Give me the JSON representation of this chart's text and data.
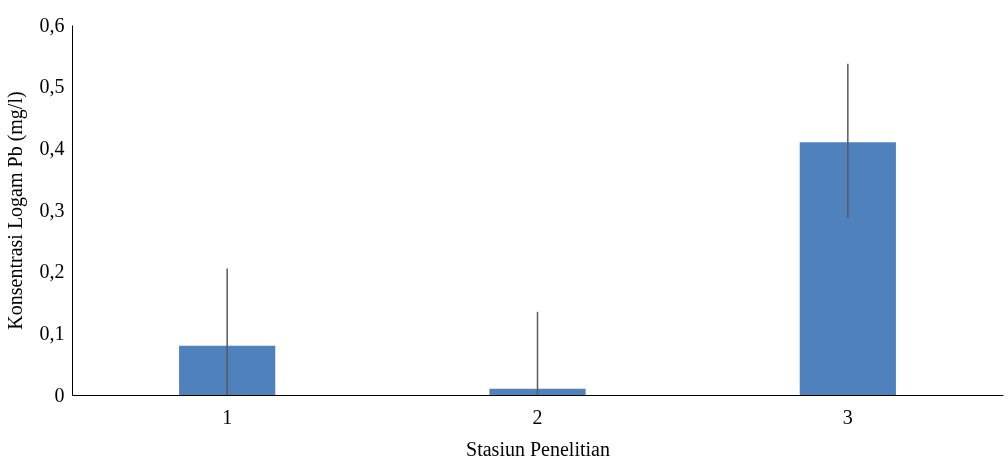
{
  "chart_data": {
    "type": "bar",
    "xlabel": "Stasiun Penelitian",
    "ylabel": "Konsentrasi Logam Pb (mg/l)",
    "categories": [
      "1",
      "2",
      "3"
    ],
    "series": [
      {
        "color": "#4f81bd",
        "values": [
          0.08,
          0.01,
          0.41
        ],
        "errors": [
          [
            0,
            0.205
          ],
          [
            0,
            0.135
          ],
          [
            0.287,
            0.537
          ]
        ]
      }
    ],
    "ylim": [
      0,
      0.6
    ],
    "yticks": [
      0,
      {
        "value": 0.1,
        "label": "0,1"
      },
      {
        "value": 0.2,
        "label": "0,2"
      },
      {
        "value": 0.3,
        "label": "0,3"
      },
      {
        "value": 0.4,
        "label": "0,4"
      },
      {
        "value": 0.5,
        "label": "0,5"
      },
      {
        "value": 0.6,
        "label": "0,6"
      }
    ],
    "grid": false
  }
}
